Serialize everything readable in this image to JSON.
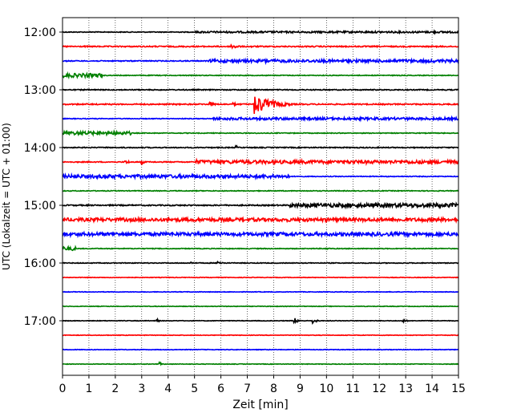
{
  "chart_data": {
    "type": "line",
    "title": "",
    "xlabel": "Zeit  [min]",
    "ylabel": "UTC (Lokalzeit = UTC + 01:00)",
    "xlim": [
      0,
      15
    ],
    "x_ticks": [
      0,
      1,
      2,
      3,
      4,
      5,
      6,
      7,
      8,
      9,
      10,
      11,
      12,
      13,
      14,
      15
    ],
    "x_tick_labels": [
      "0",
      "1",
      "2",
      "3",
      "4",
      "5",
      "6",
      "7",
      "8",
      "9",
      "10",
      "11",
      "12",
      "13",
      "14",
      "15"
    ],
    "y_tick_labels": [
      "12:00",
      "13:00",
      "14:00",
      "15:00",
      "16:00",
      "17:00"
    ],
    "y_tick_rows": [
      0,
      4,
      8,
      12,
      16,
      20
    ],
    "grid": "vertical dotted",
    "colors": [
      "#000000",
      "#ff0000",
      "#0000ff",
      "#008000"
    ],
    "rows": [
      {
        "start": "12:00",
        "color": "#000000",
        "base_amp": 0.08,
        "thick_from": 5,
        "thick_amp": 0.18,
        "events": [
          {
            "t": 14.1,
            "amp": 0.25,
            "dur": 0.3
          }
        ]
      },
      {
        "start": "12:15",
        "color": "#ff0000",
        "base_amp": 0.12,
        "events": [
          {
            "t": 6.4,
            "amp": 0.55,
            "dur": 0.6
          },
          {
            "t": 7.2,
            "amp": 0.2,
            "dur": 0.3
          }
        ]
      },
      {
        "start": "12:30",
        "color": "#0000ff",
        "base_amp": 0.1,
        "thick_from": 5.5,
        "thick_amp": 0.3,
        "events": [
          {
            "t": 7.7,
            "amp": 0.45,
            "dur": 0.7
          }
        ]
      },
      {
        "start": "12:45",
        "color": "#008000",
        "base_amp": 0.08,
        "thick_to": 1.5,
        "thick_amp": 0.4,
        "events": []
      },
      {
        "start": "13:00",
        "color": "#000000",
        "base_amp": 0.1,
        "events": [
          {
            "t": 7.3,
            "amp": 0.15,
            "dur": 0.3
          }
        ]
      },
      {
        "start": "13:15",
        "color": "#ff0000",
        "base_amp": 0.12,
        "events": [
          {
            "t": 5.6,
            "amp": 0.5,
            "dur": 0.4
          },
          {
            "t": 6.5,
            "amp": 0.3,
            "dur": 0.4
          },
          {
            "t": 7.3,
            "amp": 2.1,
            "dur": 1.4
          }
        ]
      },
      {
        "start": "13:30",
        "color": "#0000ff",
        "base_amp": 0.08,
        "thick_from": 5.7,
        "thick_amp": 0.25,
        "events": []
      },
      {
        "start": "13:45",
        "color": "#008000",
        "base_amp": 0.08,
        "thick_to": 2.6,
        "thick_amp": 0.35,
        "events": []
      },
      {
        "start": "14:00",
        "color": "#000000",
        "base_amp": 0.1,
        "events": [
          {
            "t": 6.6,
            "amp": 0.35,
            "dur": 0.2
          }
        ]
      },
      {
        "start": "14:15",
        "color": "#ff0000",
        "base_amp": 0.1,
        "thick_from": 5.1,
        "thick_amp": 0.35,
        "events": [
          {
            "t": 2.4,
            "amp": 0.35,
            "dur": 0.5
          },
          {
            "t": 3.0,
            "amp": 0.4,
            "dur": 0.3
          },
          {
            "t": 5.1,
            "amp": 0.6,
            "dur": 0.4
          }
        ]
      },
      {
        "start": "14:30",
        "color": "#0000ff",
        "base_amp": 0.08,
        "thick_to": 8.6,
        "thick_amp": 0.35,
        "events": []
      },
      {
        "start": "14:45",
        "color": "#008000",
        "base_amp": 0.08,
        "events": []
      },
      {
        "start": "15:00",
        "color": "#000000",
        "base_amp": 0.12,
        "thick_from": 8.6,
        "thick_amp": 0.4,
        "events": []
      },
      {
        "start": "15:15",
        "color": "#ff0000",
        "base_amp": 0.35,
        "events": []
      },
      {
        "start": "15:30",
        "color": "#0000ff",
        "base_amp": 0.35,
        "events": []
      },
      {
        "start": "15:45",
        "color": "#008000",
        "base_amp": 0.08,
        "thick_to": 0.5,
        "thick_amp": 0.4,
        "events": [
          {
            "t": 10.0,
            "amp": 0.2,
            "dur": 0.4
          }
        ]
      },
      {
        "start": "16:00",
        "color": "#000000",
        "base_amp": 0.08,
        "events": [
          {
            "t": 4.9,
            "amp": 0.25,
            "dur": 0.3
          },
          {
            "t": 5.9,
            "amp": 0.35,
            "dur": 0.5
          }
        ]
      },
      {
        "start": "16:15",
        "color": "#ff0000",
        "base_amp": 0.06,
        "events": []
      },
      {
        "start": "16:30",
        "color": "#0000ff",
        "base_amp": 0.06,
        "events": []
      },
      {
        "start": "16:45",
        "color": "#008000",
        "base_amp": 0.06,
        "events": []
      },
      {
        "start": "17:00",
        "color": "#000000",
        "base_amp": 0.06,
        "events": [
          {
            "t": 3.6,
            "amp": 0.4,
            "dur": 0.15
          },
          {
            "t": 8.8,
            "amp": 0.6,
            "dur": 0.3
          },
          {
            "t": 9.5,
            "amp": 0.55,
            "dur": 0.3
          },
          {
            "t": 12.9,
            "amp": 0.4,
            "dur": 0.3
          }
        ]
      },
      {
        "start": "17:15",
        "color": "#ff0000",
        "base_amp": 0.06,
        "events": []
      },
      {
        "start": "17:30",
        "color": "#0000ff",
        "base_amp": 0.06,
        "events": []
      },
      {
        "start": "17:45",
        "color": "#008000",
        "base_amp": 0.06,
        "events": [
          {
            "t": 3.7,
            "amp": 0.35,
            "dur": 0.2
          }
        ]
      }
    ]
  }
}
